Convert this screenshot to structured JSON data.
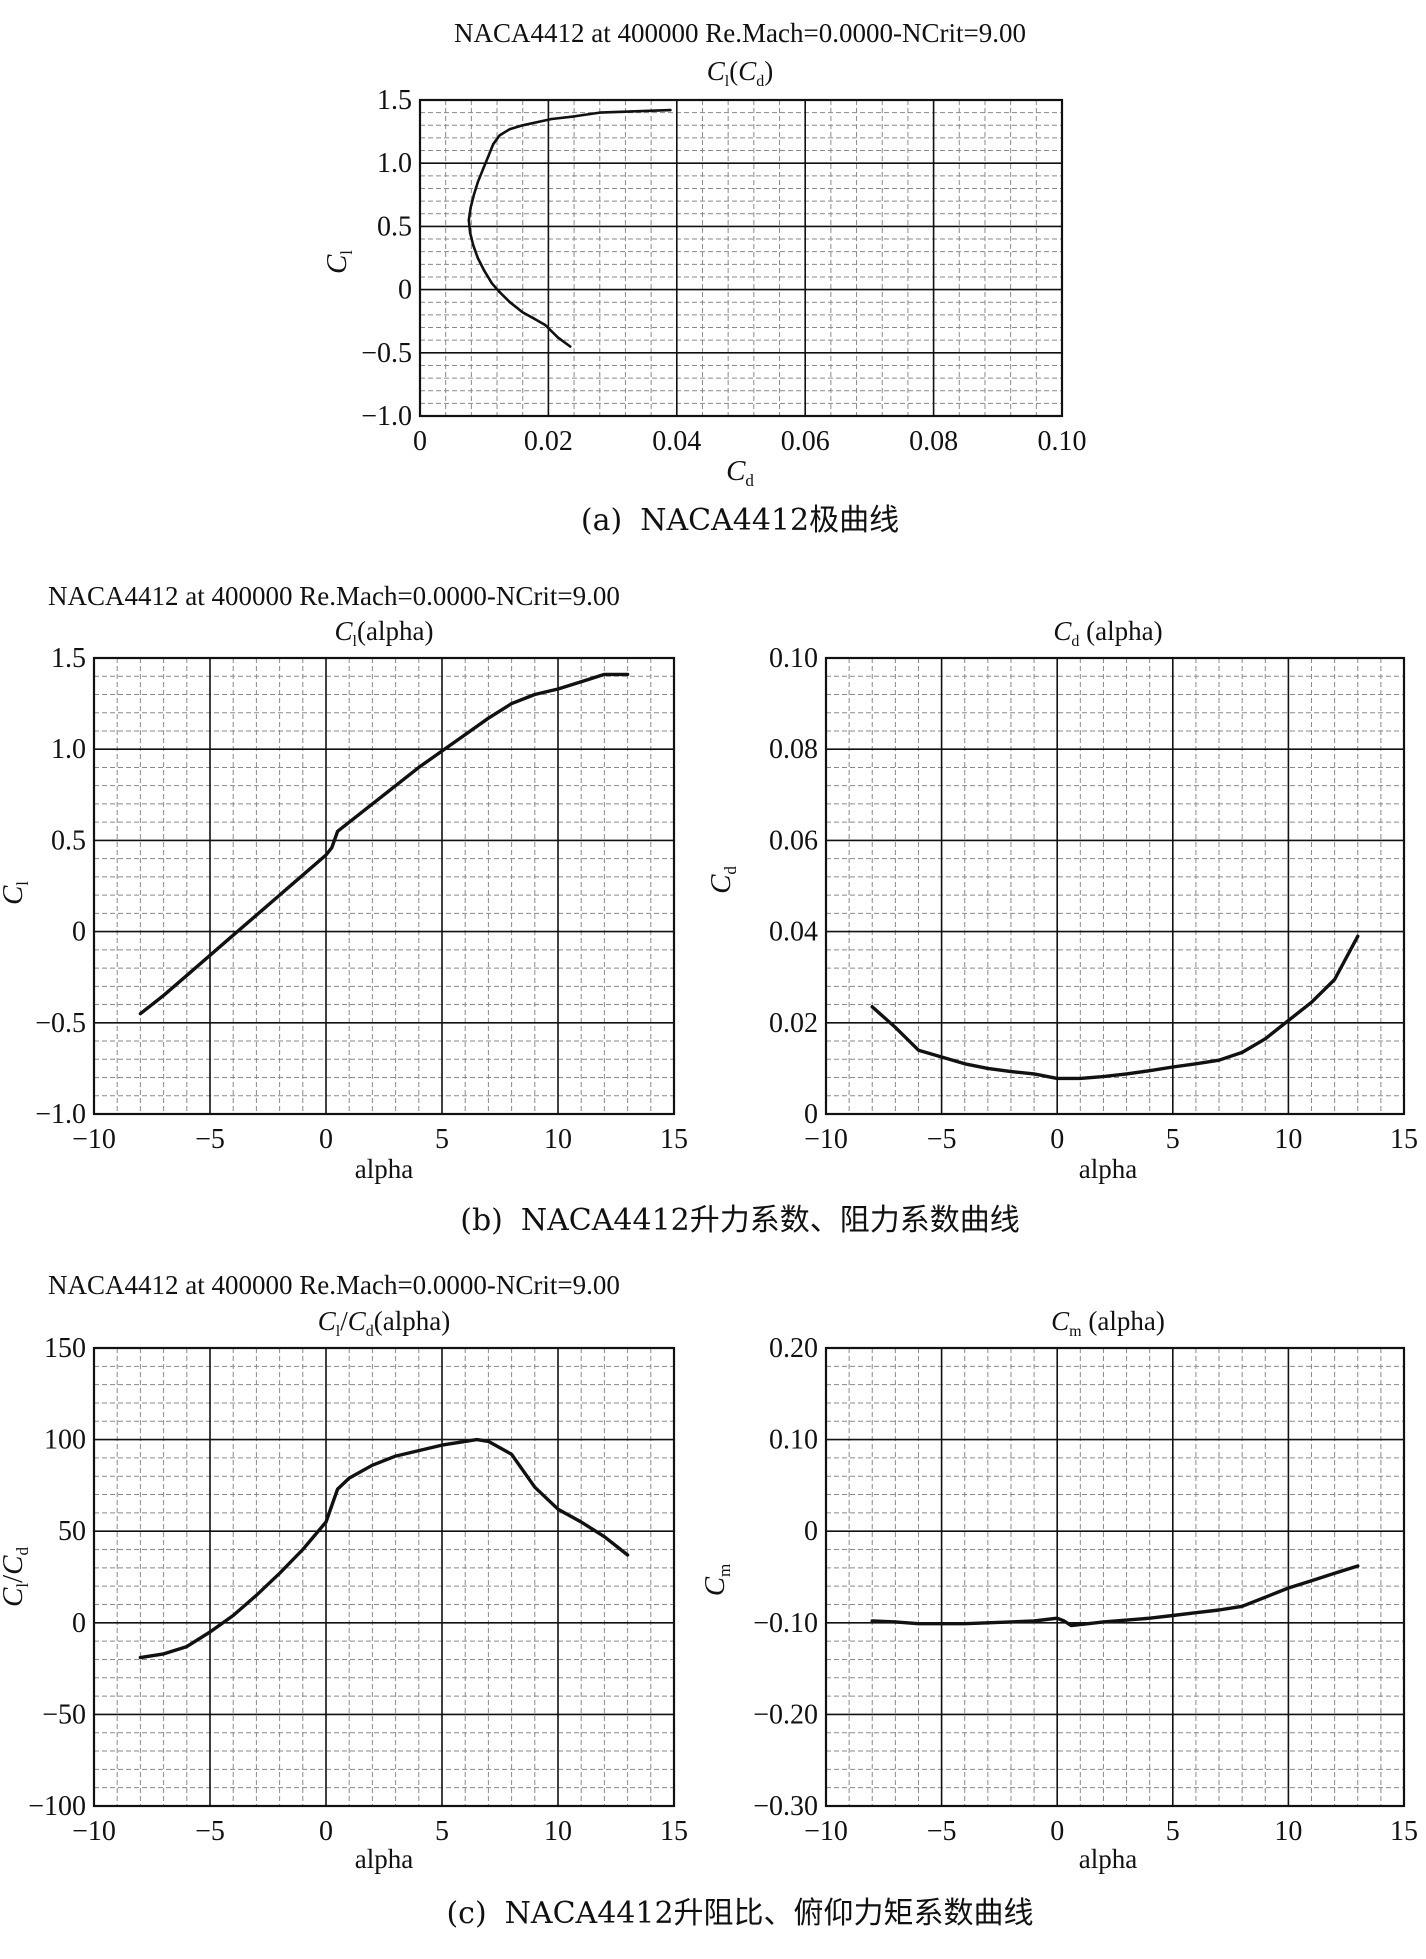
{
  "figure": {
    "header_a": "NACA4412 at 400000 Re.Mach=0.0000-NCrit=9.00",
    "header_b": "NACA4412 at 400000 Re.Mach=0.0000-NCrit=9.00",
    "header_c": "NACA4412 at 400000 Re.Mach=0.0000-NCrit=9.00",
    "caption_a_label": "(a)",
    "caption_a_text": "NACA4412极曲线",
    "caption_b_label": "(b)",
    "caption_b_text": "NACA4412升力系数、阻力系数曲线",
    "caption_c_label": "(c)",
    "caption_c_text": "NACA4412升阻比、俯仰力矩系数曲线"
  },
  "chart_data": [
    {
      "id": "polar",
      "type": "line",
      "title": "Cl(Cd)",
      "xlabel": "Cd",
      "ylabel": "Cl",
      "xlim": [
        0,
        0.1
      ],
      "ylim": [
        -1.0,
        1.5
      ],
      "xticks": [
        "0",
        "0.02",
        "0.04",
        "0.06",
        "0.08",
        "0.10"
      ],
      "yticks": [
        "-1.0",
        "-0.5",
        "0",
        "0.5",
        "1.0",
        "1.5"
      ],
      "grid": true,
      "x": [
        0.0234,
        0.0215,
        0.0195,
        0.0178,
        0.016,
        0.014,
        0.0124,
        0.0112,
        0.01,
        0.009,
        0.0083,
        0.0078,
        0.0076,
        0.0079,
        0.0084,
        0.009,
        0.0098,
        0.0106,
        0.0114,
        0.0124,
        0.014,
        0.016,
        0.0205,
        0.024,
        0.028,
        0.033,
        0.039
      ],
      "y": [
        -0.45,
        -0.38,
        -0.28,
        -0.23,
        -0.18,
        -0.1,
        -0.02,
        0.05,
        0.15,
        0.25,
        0.35,
        0.45,
        0.55,
        0.65,
        0.75,
        0.85,
        0.95,
        1.05,
        1.15,
        1.22,
        1.27,
        1.3,
        1.35,
        1.37,
        1.4,
        1.41,
        1.42
      ]
    },
    {
      "id": "cl-alpha",
      "type": "line",
      "title": "Cl(alpha)",
      "xlabel": "alpha",
      "ylabel": "Cl",
      "xlim": [
        -10,
        15
      ],
      "ylim": [
        -1.0,
        1.5
      ],
      "xticks": [
        "-10",
        "-5",
        "0",
        "5",
        "10",
        "15"
      ],
      "yticks": [
        "-1.0",
        "-0.5",
        "0",
        "0.5",
        "1.0",
        "1.5"
      ],
      "grid": true,
      "x": [
        -8,
        -7,
        -6,
        -5,
        -4,
        -3,
        -2,
        -1,
        0,
        0.25,
        0.5,
        1,
        2,
        3,
        4,
        5,
        6,
        7,
        8,
        9,
        10,
        11,
        12,
        13
      ],
      "y": [
        -0.45,
        -0.35,
        -0.24,
        -0.13,
        -0.02,
        0.09,
        0.2,
        0.31,
        0.42,
        0.46,
        0.55,
        0.6,
        0.7,
        0.8,
        0.9,
        0.99,
        1.08,
        1.17,
        1.25,
        1.3,
        1.33,
        1.37,
        1.41,
        1.41
      ]
    },
    {
      "id": "cd-alpha",
      "type": "line",
      "title": "Cd(alpha)",
      "xlabel": "alpha",
      "ylabel": "Cd",
      "xlim": [
        -10,
        15
      ],
      "ylim": [
        0,
        0.1
      ],
      "xticks": [
        "-10",
        "-5",
        "0",
        "5",
        "10",
        "15"
      ],
      "yticks": [
        "0",
        "0.02",
        "0.04",
        "0.06",
        "0.08",
        "0.10"
      ],
      "grid": true,
      "x": [
        -8,
        -7,
        -6,
        -5,
        -4,
        -3,
        -2,
        -1,
        0,
        1,
        2,
        3,
        4,
        5,
        6,
        7,
        8,
        9,
        10,
        11,
        12,
        13
      ],
      "y": [
        0.0235,
        0.019,
        0.014,
        0.0125,
        0.011,
        0.01,
        0.0093,
        0.0088,
        0.0078,
        0.0078,
        0.0082,
        0.0088,
        0.0095,
        0.0103,
        0.011,
        0.0118,
        0.0135,
        0.0165,
        0.0205,
        0.0245,
        0.0295,
        0.039
      ]
    },
    {
      "id": "clcd-alpha",
      "type": "line",
      "title": "Cl/Cd(alpha)",
      "xlabel": "alpha",
      "ylabel": "Cl/Cd",
      "xlim": [
        -10,
        15
      ],
      "ylim": [
        -100,
        150
      ],
      "xticks": [
        "-10",
        "-5",
        "0",
        "5",
        "10",
        "15"
      ],
      "yticks": [
        "-100",
        "-50",
        "0",
        "50",
        "100",
        "150"
      ],
      "grid": true,
      "x": [
        -8,
        -7,
        -6,
        -5,
        -4,
        -3,
        -2,
        -1,
        0,
        0.5,
        1,
        2,
        3,
        4,
        5,
        6,
        6.5,
        7,
        8,
        9,
        10,
        11,
        12,
        13
      ],
      "y": [
        -19,
        -17,
        -13,
        -5,
        4,
        15,
        27,
        40,
        55,
        73,
        79,
        86,
        91,
        94,
        97,
        99,
        100,
        99,
        92,
        74,
        62,
        55,
        47,
        37
      ]
    },
    {
      "id": "cm-alpha",
      "type": "line",
      "title": "Cm(alpha)",
      "xlabel": "alpha",
      "ylabel": "Cm",
      "xlim": [
        -10,
        15
      ],
      "ylim": [
        -0.3,
        0.2
      ],
      "xticks": [
        "-10",
        "-5",
        "0",
        "5",
        "10",
        "15"
      ],
      "yticks": [
        "-0.30",
        "-0.20",
        "-0.10",
        "0",
        "0.10",
        "0.20"
      ],
      "grid": true,
      "x": [
        -8,
        -7,
        -6,
        -5,
        -4,
        -3,
        -2,
        -1,
        0,
        0.3,
        0.6,
        1,
        2,
        3,
        4,
        5,
        6,
        7,
        8,
        9,
        10,
        11,
        12,
        13
      ],
      "y": [
        -0.098,
        -0.099,
        -0.101,
        -0.101,
        -0.101,
        -0.1,
        -0.099,
        -0.098,
        -0.095,
        -0.098,
        -0.103,
        -0.102,
        -0.099,
        -0.097,
        -0.095,
        -0.092,
        -0.089,
        -0.086,
        -0.082,
        -0.072,
        -0.062,
        -0.054,
        -0.046,
        -0.038
      ]
    }
  ]
}
